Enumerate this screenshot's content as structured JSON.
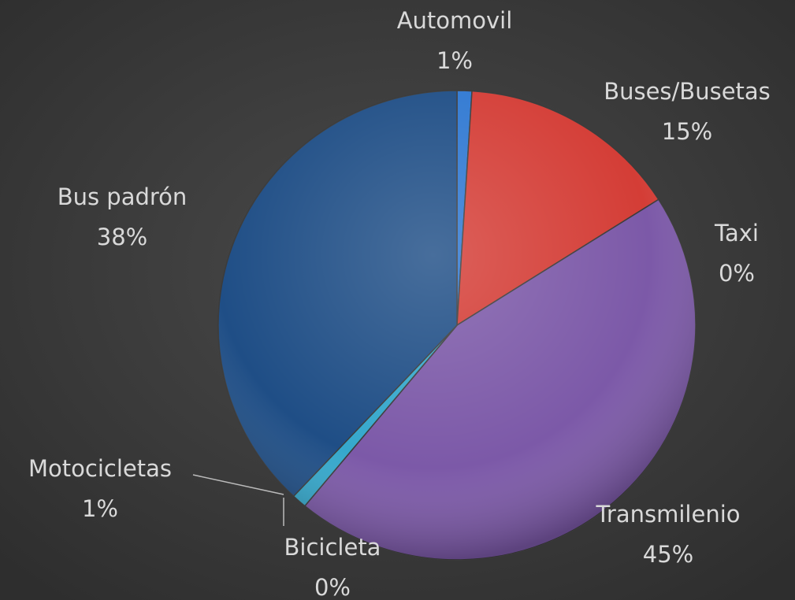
{
  "chart_data": {
    "type": "pie",
    "categories": [
      "Automovil",
      "Buses/Busetas",
      "Taxi",
      "Transmilenio",
      "Bicicleta",
      "Motocicletas",
      "Bus padrón"
    ],
    "values": [
      1,
      15,
      0,
      45,
      0,
      1,
      38
    ],
    "value_labels": [
      "1%",
      "15%",
      "0%",
      "45%",
      "0%",
      "1%",
      "38%"
    ],
    "colors": [
      "#2f78d2",
      "#d43d36",
      "#6a9a3a",
      "#7c59a8",
      "#e07a2a",
      "#35a8cc",
      "#1f4e86"
    ]
  }
}
